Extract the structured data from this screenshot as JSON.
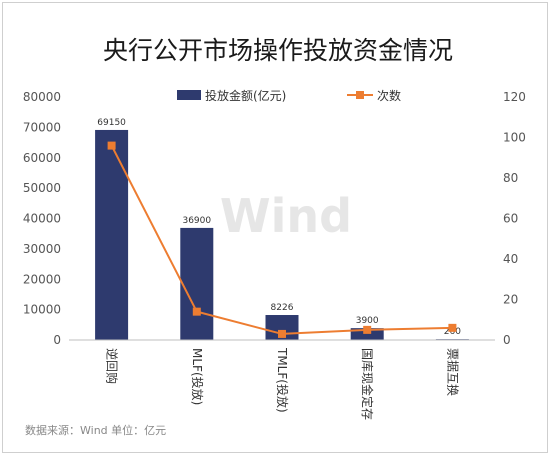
{
  "chart_data": {
    "type": "bar+line",
    "title": "央行公开市场操作投放资金情况",
    "categories": [
      "逆回购",
      "MLF(投放)",
      "TMLF(投放)",
      "国库现金定存",
      "票据互换"
    ],
    "series": [
      {
        "name": "投放金额(亿元)",
        "type": "bar",
        "axis": "left",
        "values": [
          69150,
          36900,
          8226,
          3900,
          260
        ],
        "data_labels": [
          "69150",
          "36900",
          "8226",
          "3900",
          "260"
        ]
      },
      {
        "name": "次数",
        "type": "line",
        "axis": "right",
        "values": [
          96,
          14,
          3,
          5,
          6
        ]
      }
    ],
    "y_left": {
      "ylim": [
        0,
        80000
      ],
      "ticks": [
        "0",
        "10000",
        "20000",
        "30000",
        "40000",
        "50000",
        "60000",
        "70000",
        "80000"
      ]
    },
    "y_right": {
      "ylim": [
        0,
        120
      ],
      "ticks": [
        "0",
        "20",
        "40",
        "60",
        "80",
        "100",
        "120"
      ]
    },
    "grid": false,
    "legend": "top",
    "colors": {
      "bar": "#2e3a6e",
      "line": "#ed7d31"
    }
  },
  "source_note": "数据来源：Wind   单位：亿元",
  "watermark": "Wind"
}
